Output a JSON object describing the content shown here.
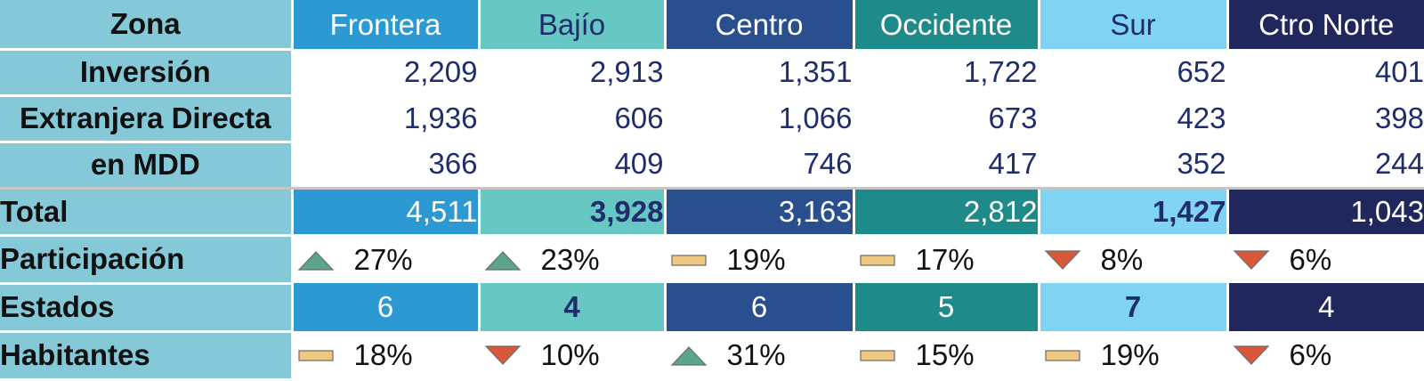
{
  "header": {
    "label": "Zona",
    "zones": [
      "Frontera",
      "Bajío",
      "Centro",
      "Occidente",
      "Sur",
      "Ctro Norte"
    ]
  },
  "zone_colors": [
    "#2c99d2",
    "#66c7c3",
    "#2a4f8e",
    "#1f8a8a",
    "#80d3f3",
    "#20275d"
  ],
  "zone_text_colors": [
    "#ffffff",
    "#1f2d6b",
    "#ffffff",
    "#ffffff",
    "#1f2d6b",
    "#ffffff"
  ],
  "label_column": {
    "line1": "Inversión",
    "line2": "Extranjera Directa",
    "line3": "en MDD",
    "total": "Total",
    "participacion": "Participación",
    "estados": "Estados",
    "habitantes": "Habitantes"
  },
  "inversion_rows": [
    [
      "2,209",
      "2,913",
      "1,351",
      "1,722",
      "652",
      "401"
    ],
    [
      "1,936",
      "606",
      "1,066",
      "673",
      "423",
      "398"
    ],
    [
      "366",
      "409",
      "746",
      "417",
      "352",
      "244"
    ]
  ],
  "total": [
    "4,511",
    "3,928",
    "3,163",
    "2,812",
    "1,427",
    "1,043"
  ],
  "participacion": [
    {
      "icon": "triangle-up-icon",
      "value": "27%"
    },
    {
      "icon": "triangle-up-icon",
      "value": "23%"
    },
    {
      "icon": "flat-bar-icon",
      "value": "19%"
    },
    {
      "icon": "flat-bar-icon",
      "value": "17%"
    },
    {
      "icon": "triangle-down-icon",
      "value": "8%"
    },
    {
      "icon": "triangle-down-icon",
      "value": "6%"
    }
  ],
  "estados": [
    "6",
    "4",
    "6",
    "5",
    "7",
    "4"
  ],
  "habitantes": [
    {
      "icon": "flat-bar-icon",
      "value": "18%"
    },
    {
      "icon": "triangle-down-icon",
      "value": "10%"
    },
    {
      "icon": "triangle-up-icon",
      "value": "31%"
    },
    {
      "icon": "flat-bar-icon",
      "value": "15%"
    },
    {
      "icon": "flat-bar-icon",
      "value": "19%"
    },
    {
      "icon": "triangle-down-icon",
      "value": "6%"
    }
  ],
  "icon_colors": {
    "triangle-up-icon": "#5aa58c",
    "triangle-down-icon": "#d8593a",
    "flat-bar-icon": "#f0c77e"
  }
}
